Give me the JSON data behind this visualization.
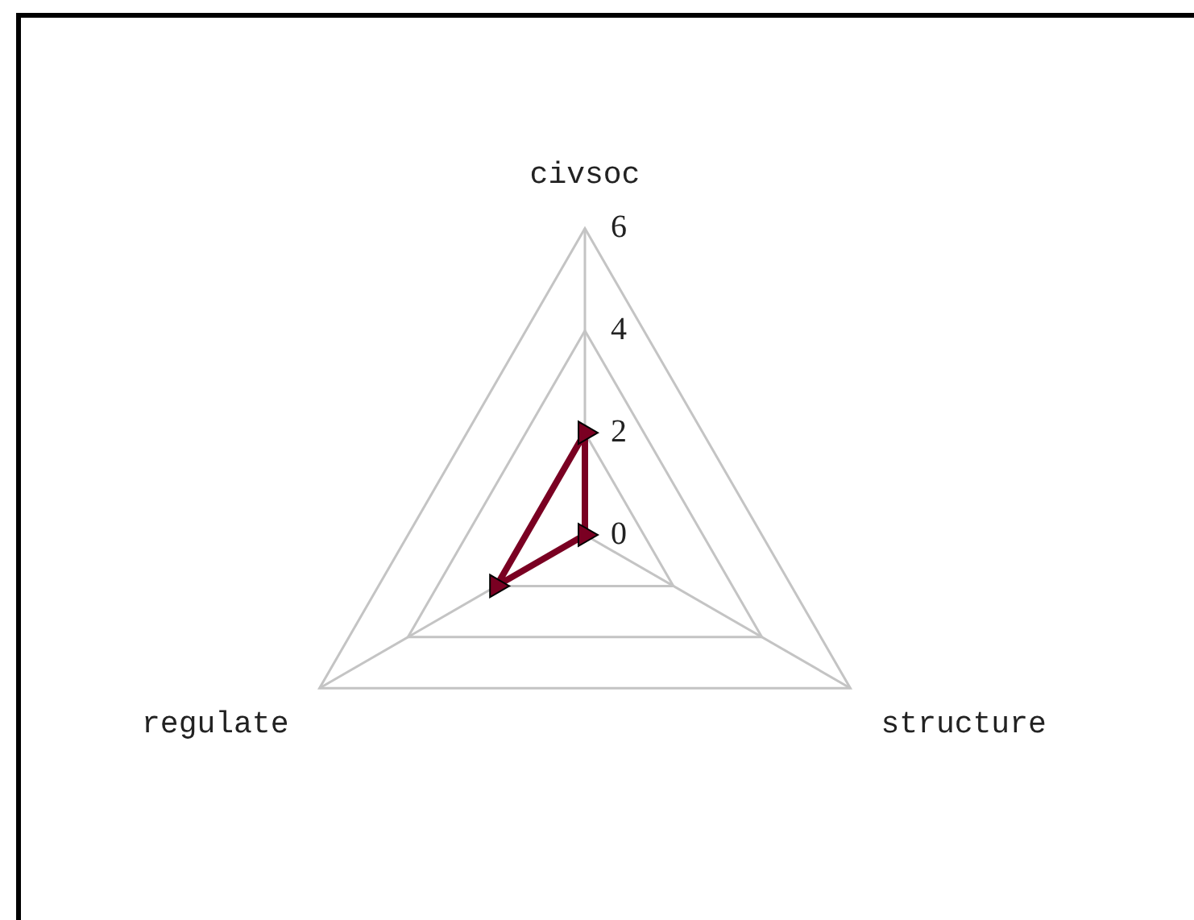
{
  "chart_data": {
    "type": "radar",
    "categories": [
      "civsoc",
      "structure",
      "regulate"
    ],
    "series": [
      {
        "color": "#7a0022",
        "values": [
          2,
          0,
          2
        ]
      }
    ],
    "ylim": [
      0,
      6
    ],
    "yticks": [
      0,
      2,
      4,
      6
    ],
    "grid": true,
    "marker": "triangle"
  }
}
